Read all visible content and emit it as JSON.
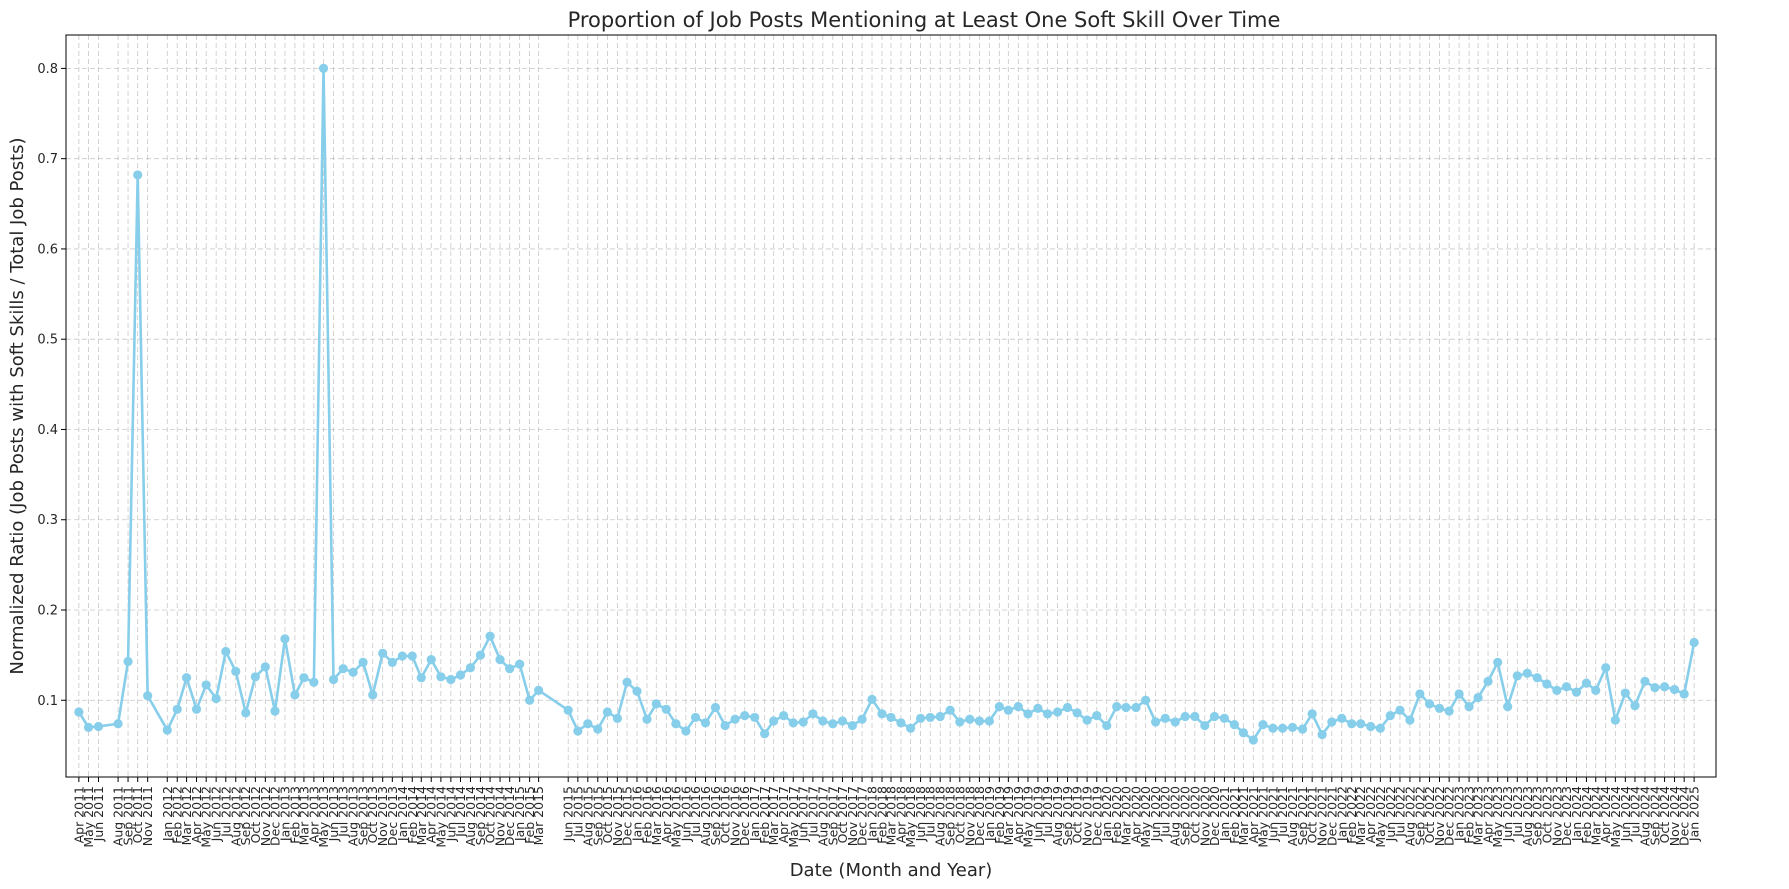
{
  "chart_data": {
    "type": "line",
    "title": "Proportion of Job Posts Mentioning at Least One Soft Skill Over Time",
    "xlabel": "Date (Month and Year)",
    "ylabel": "Normalized Ratio (Job Posts with Soft Skills / Total Job Posts)",
    "ylim": [
      0.015,
      0.837
    ],
    "yticks": [
      "0.1",
      "0.2",
      "0.3",
      "0.4",
      "0.5",
      "0.6",
      "0.7",
      "0.8"
    ],
    "xlim": [
      "2011-02-20",
      "2025-03-10"
    ],
    "grid": true,
    "line_color": "#87ceeb",
    "grid_color": "#b0b0b0",
    "points": [
      {
        "date": "2011-04-01",
        "label": "Apr 2011",
        "value": 0.087
      },
      {
        "date": "2011-05-01",
        "label": "May 2011",
        "value": 0.07
      },
      {
        "date": "2011-06-01",
        "label": "Jun 2011",
        "value": 0.071
      },
      {
        "date": "2011-08-01",
        "label": "Aug 2011",
        "value": 0.074
      },
      {
        "date": "2011-09-01",
        "label": "Sep 2011",
        "value": 0.143
      },
      {
        "date": "2011-10-01",
        "label": "Oct 2011",
        "value": 0.682
      },
      {
        "date": "2011-11-01",
        "label": "Nov 2011",
        "value": 0.105
      },
      {
        "date": "2012-01-01",
        "label": "Jan 2012",
        "value": 0.067
      },
      {
        "date": "2012-02-01",
        "label": "Feb 2012",
        "value": 0.09
      },
      {
        "date": "2012-03-01",
        "label": "Mar 2012",
        "value": 0.125
      },
      {
        "date": "2012-04-01",
        "label": "Apr 2012",
        "value": 0.09
      },
      {
        "date": "2012-05-01",
        "label": "May 2012",
        "value": 0.117
      },
      {
        "date": "2012-06-01",
        "label": "Jun 2012",
        "value": 0.102
      },
      {
        "date": "2012-07-01",
        "label": "Jul 2012",
        "value": 0.154
      },
      {
        "date": "2012-08-01",
        "label": "Aug 2012",
        "value": 0.132
      },
      {
        "date": "2012-09-01",
        "label": "Sep 2012",
        "value": 0.086
      },
      {
        "date": "2012-10-01",
        "label": "Oct 2012",
        "value": 0.126
      },
      {
        "date": "2012-11-01",
        "label": "Nov 2012",
        "value": 0.137
      },
      {
        "date": "2012-12-01",
        "label": "Dec 2012",
        "value": 0.088
      },
      {
        "date": "2013-01-01",
        "label": "Jan 2013",
        "value": 0.168
      },
      {
        "date": "2013-02-01",
        "label": "Feb 2013",
        "value": 0.106
      },
      {
        "date": "2013-03-01",
        "label": "Mar 2013",
        "value": 0.125
      },
      {
        "date": "2013-04-01",
        "label": "Apr 2013",
        "value": 0.12
      },
      {
        "date": "2013-05-01",
        "label": "May 2013",
        "value": 0.8
      },
      {
        "date": "2013-06-01",
        "label": "Jun 2013",
        "value": 0.123
      },
      {
        "date": "2013-07-01",
        "label": "Jul 2013",
        "value": 0.135
      },
      {
        "date": "2013-08-01",
        "label": "Aug 2013",
        "value": 0.131
      },
      {
        "date": "2013-09-01",
        "label": "Sep 2013",
        "value": 0.142
      },
      {
        "date": "2013-10-01",
        "label": "Oct 2013",
        "value": 0.106
      },
      {
        "date": "2013-11-01",
        "label": "Nov 2013",
        "value": 0.152
      },
      {
        "date": "2013-12-01",
        "label": "Dec 2013",
        "value": 0.142
      },
      {
        "date": "2014-01-01",
        "label": "Jan 2014",
        "value": 0.149
      },
      {
        "date": "2014-02-01",
        "label": "Feb 2014",
        "value": 0.149
      },
      {
        "date": "2014-03-01",
        "label": "Mar 2014",
        "value": 0.125
      },
      {
        "date": "2014-04-01",
        "label": "Apr 2014",
        "value": 0.145
      },
      {
        "date": "2014-05-01",
        "label": "May 2014",
        "value": 0.126
      },
      {
        "date": "2014-06-01",
        "label": "Jun 2014",
        "value": 0.123
      },
      {
        "date": "2014-07-01",
        "label": "Jul 2014",
        "value": 0.128
      },
      {
        "date": "2014-08-01",
        "label": "Aug 2014",
        "value": 0.136
      },
      {
        "date": "2014-09-01",
        "label": "Sep 2014",
        "value": 0.15
      },
      {
        "date": "2014-10-01",
        "label": "Oct 2014",
        "value": 0.171
      },
      {
        "date": "2014-11-01",
        "label": "Nov 2014",
        "value": 0.145
      },
      {
        "date": "2014-12-01",
        "label": "Dec 2014",
        "value": 0.135
      },
      {
        "date": "2015-01-01",
        "label": "Jan 2015",
        "value": 0.14
      },
      {
        "date": "2015-02-01",
        "label": "Feb 2015",
        "value": 0.1
      },
      {
        "date": "2015-03-01",
        "label": "Mar 2015",
        "value": 0.111
      },
      {
        "date": "2015-06-01",
        "label": "Jun 2015",
        "value": 0.089
      },
      {
        "date": "2015-07-01",
        "label": "Jul 2015",
        "value": 0.066
      },
      {
        "date": "2015-08-01",
        "label": "Aug 2015",
        "value": 0.074
      },
      {
        "date": "2015-09-01",
        "label": "Sep 2015",
        "value": 0.068
      },
      {
        "date": "2015-10-01",
        "label": "Oct 2015",
        "value": 0.087
      },
      {
        "date": "2015-11-01",
        "label": "Nov 2015",
        "value": 0.08
      },
      {
        "date": "2015-12-01",
        "label": "Dec 2015",
        "value": 0.12
      },
      {
        "date": "2016-01-01",
        "label": "Jan 2016",
        "value": 0.11
      },
      {
        "date": "2016-02-01",
        "label": "Feb 2016",
        "value": 0.079
      },
      {
        "date": "2016-03-01",
        "label": "Mar 2016",
        "value": 0.096
      },
      {
        "date": "2016-04-01",
        "label": "Apr 2016",
        "value": 0.09
      },
      {
        "date": "2016-05-01",
        "label": "May 2016",
        "value": 0.074
      },
      {
        "date": "2016-06-01",
        "label": "Jun 2016",
        "value": 0.066
      },
      {
        "date": "2016-07-01",
        "label": "Jul 2016",
        "value": 0.081
      },
      {
        "date": "2016-08-01",
        "label": "Aug 2016",
        "value": 0.075
      },
      {
        "date": "2016-09-01",
        "label": "Sep 2016",
        "value": 0.092
      },
      {
        "date": "2016-10-01",
        "label": "Oct 2016",
        "value": 0.072
      },
      {
        "date": "2016-11-01",
        "label": "Nov 2016",
        "value": 0.079
      },
      {
        "date": "2016-12-01",
        "label": "Dec 2016",
        "value": 0.083
      },
      {
        "date": "2017-01-01",
        "label": "Jan 2017",
        "value": 0.081
      },
      {
        "date": "2017-02-01",
        "label": "Feb 2017",
        "value": 0.063
      },
      {
        "date": "2017-03-01",
        "label": "Mar 2017",
        "value": 0.077
      },
      {
        "date": "2017-04-01",
        "label": "Apr 2017",
        "value": 0.083
      },
      {
        "date": "2017-05-01",
        "label": "May 2017",
        "value": 0.075
      },
      {
        "date": "2017-06-01",
        "label": "Jun 2017",
        "value": 0.076
      },
      {
        "date": "2017-07-01",
        "label": "Jul 2017",
        "value": 0.085
      },
      {
        "date": "2017-08-01",
        "label": "Aug 2017",
        "value": 0.077
      },
      {
        "date": "2017-09-01",
        "label": "Sep 2017",
        "value": 0.074
      },
      {
        "date": "2017-10-01",
        "label": "Oct 2017",
        "value": 0.077
      },
      {
        "date": "2017-11-01",
        "label": "Nov 2017",
        "value": 0.072
      },
      {
        "date": "2017-12-01",
        "label": "Dec 2017",
        "value": 0.079
      },
      {
        "date": "2018-01-01",
        "label": "Jan 2018",
        "value": 0.101
      },
      {
        "date": "2018-02-01",
        "label": "Feb 2018",
        "value": 0.085
      },
      {
        "date": "2018-03-01",
        "label": "Mar 2018",
        "value": 0.081
      },
      {
        "date": "2018-04-01",
        "label": "Apr 2018",
        "value": 0.075
      },
      {
        "date": "2018-05-01",
        "label": "May 2018",
        "value": 0.069
      },
      {
        "date": "2018-06-01",
        "label": "Jun 2018",
        "value": 0.08
      },
      {
        "date": "2018-07-01",
        "label": "Jul 2018",
        "value": 0.081
      },
      {
        "date": "2018-08-01",
        "label": "Aug 2018",
        "value": 0.082
      },
      {
        "date": "2018-09-01",
        "label": "Sep 2018",
        "value": 0.089
      },
      {
        "date": "2018-10-01",
        "label": "Oct 2018",
        "value": 0.076
      },
      {
        "date": "2018-11-01",
        "label": "Nov 2018",
        "value": 0.079
      },
      {
        "date": "2018-12-01",
        "label": "Dec 2018",
        "value": 0.077
      },
      {
        "date": "2019-01-01",
        "label": "Jan 2019",
        "value": 0.077
      },
      {
        "date": "2019-02-01",
        "label": "Feb 2019",
        "value": 0.093
      },
      {
        "date": "2019-03-01",
        "label": "Mar 2019",
        "value": 0.089
      },
      {
        "date": "2019-04-01",
        "label": "Apr 2019",
        "value": 0.093
      },
      {
        "date": "2019-05-01",
        "label": "May 2019",
        "value": 0.085
      },
      {
        "date": "2019-06-01",
        "label": "Jun 2019",
        "value": 0.091
      },
      {
        "date": "2019-07-01",
        "label": "Jul 2019",
        "value": 0.085
      },
      {
        "date": "2019-08-01",
        "label": "Aug 2019",
        "value": 0.087
      },
      {
        "date": "2019-09-01",
        "label": "Sep 2019",
        "value": 0.092
      },
      {
        "date": "2019-10-01",
        "label": "Oct 2019",
        "value": 0.086
      },
      {
        "date": "2019-11-01",
        "label": "Nov 2019",
        "value": 0.078
      },
      {
        "date": "2019-12-01",
        "label": "Dec 2019",
        "value": 0.083
      },
      {
        "date": "2020-01-01",
        "label": "Jan 2020",
        "value": 0.072
      },
      {
        "date": "2020-02-01",
        "label": "Feb 2020",
        "value": 0.093
      },
      {
        "date": "2020-03-01",
        "label": "Mar 2020",
        "value": 0.092
      },
      {
        "date": "2020-04-01",
        "label": "Apr 2020",
        "value": 0.092
      },
      {
        "date": "2020-05-01",
        "label": "May 2020",
        "value": 0.1
      },
      {
        "date": "2020-06-01",
        "label": "Jun 2020",
        "value": 0.076
      },
      {
        "date": "2020-07-01",
        "label": "Jul 2020",
        "value": 0.08
      },
      {
        "date": "2020-08-01",
        "label": "Aug 2020",
        "value": 0.076
      },
      {
        "date": "2020-09-01",
        "label": "Sep 2020",
        "value": 0.082
      },
      {
        "date": "2020-10-01",
        "label": "Oct 2020",
        "value": 0.082
      },
      {
        "date": "2020-11-01",
        "label": "Nov 2020",
        "value": 0.072
      },
      {
        "date": "2020-12-01",
        "label": "Dec 2020",
        "value": 0.082
      },
      {
        "date": "2021-01-01",
        "label": "Jan 2021",
        "value": 0.08
      },
      {
        "date": "2021-02-01",
        "label": "Feb 2021",
        "value": 0.073
      },
      {
        "date": "2021-03-01",
        "label": "Mar 2021",
        "value": 0.064
      },
      {
        "date": "2021-04-01",
        "label": "Apr 2021",
        "value": 0.056
      },
      {
        "date": "2021-05-01",
        "label": "May 2021",
        "value": 0.073
      },
      {
        "date": "2021-06-01",
        "label": "Jun 2021",
        "value": 0.069
      },
      {
        "date": "2021-07-01",
        "label": "Jul 2021",
        "value": 0.069
      },
      {
        "date": "2021-08-01",
        "label": "Aug 2021",
        "value": 0.07
      },
      {
        "date": "2021-09-01",
        "label": "Sep 2021",
        "value": 0.068
      },
      {
        "date": "2021-10-01",
        "label": "Oct 2021",
        "value": 0.085
      },
      {
        "date": "2021-11-01",
        "label": "Nov 2021",
        "value": 0.062
      },
      {
        "date": "2021-12-01",
        "label": "Dec 2021",
        "value": 0.076
      },
      {
        "date": "2022-01-01",
        "label": "Jan 2022",
        "value": 0.08
      },
      {
        "date": "2022-02-01",
        "label": "Feb 2022",
        "value": 0.074
      },
      {
        "date": "2022-03-01",
        "label": "Mar 2022",
        "value": 0.074
      },
      {
        "date": "2022-04-01",
        "label": "Apr 2022",
        "value": 0.071
      },
      {
        "date": "2022-05-01",
        "label": "May 2022",
        "value": 0.069
      },
      {
        "date": "2022-06-01",
        "label": "Jun 2022",
        "value": 0.083
      },
      {
        "date": "2022-07-01",
        "label": "Jul 2022",
        "value": 0.089
      },
      {
        "date": "2022-08-01",
        "label": "Aug 2022",
        "value": 0.078
      },
      {
        "date": "2022-09-01",
        "label": "Sep 2022",
        "value": 0.107
      },
      {
        "date": "2022-10-01",
        "label": "Oct 2022",
        "value": 0.096
      },
      {
        "date": "2022-11-01",
        "label": "Nov 2022",
        "value": 0.091
      },
      {
        "date": "2022-12-01",
        "label": "Dec 2022",
        "value": 0.088
      },
      {
        "date": "2023-01-01",
        "label": "Jan 2023",
        "value": 0.107
      },
      {
        "date": "2023-02-01",
        "label": "Feb 2023",
        "value": 0.093
      },
      {
        "date": "2023-03-01",
        "label": "Mar 2023",
        "value": 0.103
      },
      {
        "date": "2023-04-01",
        "label": "Apr 2023",
        "value": 0.121
      },
      {
        "date": "2023-05-01",
        "label": "May 2023",
        "value": 0.142
      },
      {
        "date": "2023-06-01",
        "label": "Jun 2023",
        "value": 0.093
      },
      {
        "date": "2023-07-01",
        "label": "Jul 2023",
        "value": 0.127
      },
      {
        "date": "2023-08-01",
        "label": "Aug 2023",
        "value": 0.13
      },
      {
        "date": "2023-09-01",
        "label": "Sep 2023",
        "value": 0.125
      },
      {
        "date": "2023-10-01",
        "label": "Oct 2023",
        "value": 0.118
      },
      {
        "date": "2023-11-01",
        "label": "Nov 2023",
        "value": 0.111
      },
      {
        "date": "2023-12-01",
        "label": "Dec 2023",
        "value": 0.115
      },
      {
        "date": "2024-01-01",
        "label": "Jan 2024",
        "value": 0.109
      },
      {
        "date": "2024-02-01",
        "label": "Feb 2024",
        "value": 0.119
      },
      {
        "date": "2024-03-01",
        "label": "Mar 2024",
        "value": 0.111
      },
      {
        "date": "2024-04-01",
        "label": "Apr 2024",
        "value": 0.136
      },
      {
        "date": "2024-05-01",
        "label": "May 2024",
        "value": 0.078
      },
      {
        "date": "2024-06-01",
        "label": "Jun 2024",
        "value": 0.108
      },
      {
        "date": "2024-07-01",
        "label": "Jul 2024",
        "value": 0.094
      },
      {
        "date": "2024-08-01",
        "label": "Aug 2024",
        "value": 0.121
      },
      {
        "date": "2024-09-01",
        "label": "Sep 2024",
        "value": 0.114
      },
      {
        "date": "2024-10-01",
        "label": "Oct 2024",
        "value": 0.115
      },
      {
        "date": "2024-11-01",
        "label": "Nov 2024",
        "value": 0.112
      },
      {
        "date": "2024-12-01",
        "label": "Dec 2024",
        "value": 0.107
      },
      {
        "date": "2025-01-01",
        "label": "Jan 2025",
        "value": 0.164
      }
    ]
  }
}
